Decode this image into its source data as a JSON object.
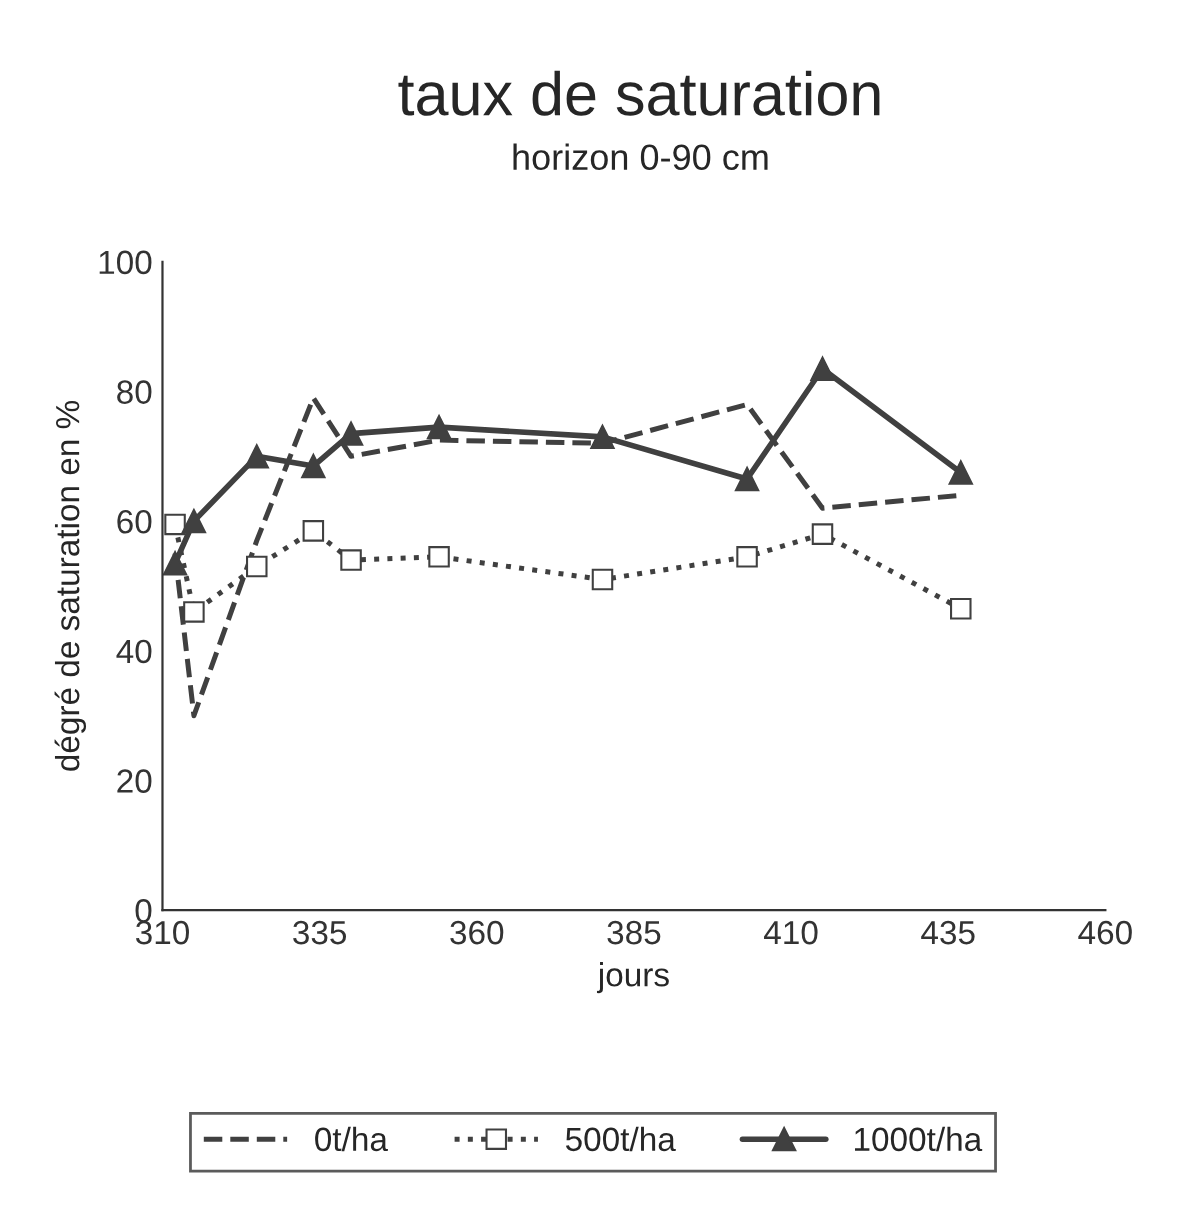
{
  "chart_data": {
    "type": "line",
    "title": "taux de saturation",
    "subtitle": "horizon 0-90 cm",
    "xlabel": "jours",
    "ylabel": "dégré de saturation en %",
    "x": [
      312,
      315,
      325,
      334,
      340,
      354,
      380,
      403,
      415,
      437
    ],
    "series": [
      {
        "name": "0t/ha",
        "color": "#404040",
        "line_style": "dashed",
        "marker": "none",
        "values": [
          55,
          30,
          57,
          79,
          70,
          72.5,
          72,
          78,
          62,
          64
        ]
      },
      {
        "name": "500t/ha",
        "color": "#404040",
        "line_style": "dotted",
        "marker": "square",
        "values": [
          59.5,
          46,
          53,
          58.5,
          54,
          54.5,
          51,
          54.5,
          58,
          46.5
        ]
      },
      {
        "name": "1000t/ha",
        "color": "#404040",
        "line_style": "solid",
        "marker": "triangle",
        "values": [
          53.5,
          60,
          70,
          68.5,
          73.5,
          74.5,
          73,
          66.5,
          83.5,
          67.5
        ]
      }
    ],
    "xlim": [
      310,
      460
    ],
    "xticks": [
      310,
      335,
      360,
      385,
      410,
      435,
      460
    ],
    "ylim": [
      0,
      100
    ],
    "yticks": [
      0,
      20,
      40,
      60,
      80,
      100
    ],
    "grid": false,
    "legend": "bottom"
  }
}
